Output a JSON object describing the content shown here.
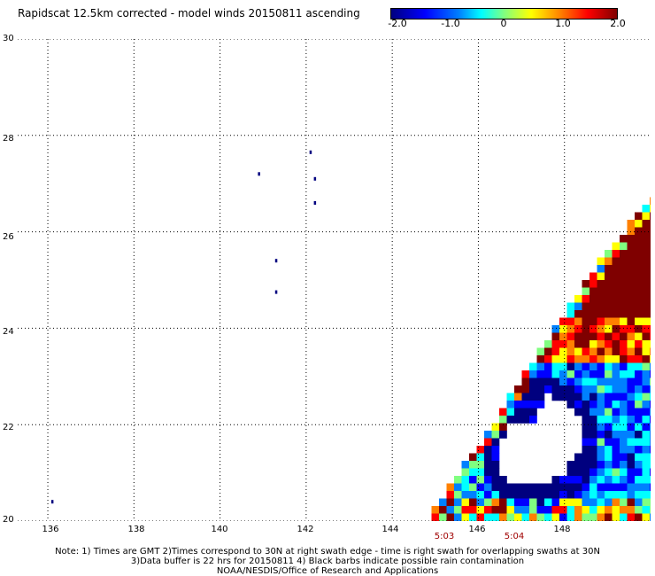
{
  "title": "Rapidscat 12.5km corrected - model winds 20150811 ascending",
  "colorbar": {
    "ticks": [
      "-2.0",
      "-1.0",
      "0",
      "1.0",
      "2.0"
    ],
    "range": [
      -2.0,
      2.0
    ],
    "colors": [
      "#00007f",
      "#0000ff",
      "#0080ff",
      "#00ffff",
      "#80ff80",
      "#ffff00",
      "#ff8000",
      "#ff0000",
      "#7f0000"
    ]
  },
  "map": {
    "lon_range": [
      135.3,
      150.0
    ],
    "lat_range": [
      20,
      30
    ],
    "lat_labels": [
      "30",
      "28",
      "26",
      "24",
      "22",
      "20"
    ],
    "lon_labels": [
      "136",
      "138",
      "140",
      "142",
      "144",
      "146",
      "148"
    ],
    "grid": "dotted",
    "land_color": "#00007f",
    "islands": [
      {
        "lon": 136.1,
        "lat": 20.4
      },
      {
        "lon": 140.9,
        "lat": 27.2
      },
      {
        "lon": 142.1,
        "lat": 27.65
      },
      {
        "lon": 142.2,
        "lat": 27.1
      },
      {
        "lon": 142.2,
        "lat": 26.6
      },
      {
        "lon": 141.3,
        "lat": 25.4
      },
      {
        "lon": 141.3,
        "lat": 24.75
      }
    ],
    "swath_edge": [
      [
        144.8,
        20.0
      ],
      [
        146.4,
        22.1
      ],
      [
        147.6,
        23.8
      ],
      [
        149.0,
        25.6
      ],
      [
        150.0,
        26.7
      ]
    ],
    "rain_hole": [
      [
        147.6,
        22.6
      ],
      [
        148.3,
        22.3
      ],
      [
        148.4,
        21.6
      ],
      [
        148.0,
        21.0
      ],
      [
        147.2,
        20.7
      ],
      [
        146.6,
        20.9
      ],
      [
        146.4,
        21.5
      ],
      [
        146.8,
        22.1
      ],
      [
        147.3,
        22.1
      ]
    ]
  },
  "times": [
    "5:03",
    "5:04"
  ],
  "notes": [
    "Note: 1) Times are GMT 2)Times correspond to 30N at right swath edge - time is right swath for overlapping swaths at 30N",
    "3)Data buffer is 22 hrs for 20150811 4) Black barbs indicate possible rain contamination",
    "NOAA/NESDIS/Office of Research and Applications"
  ]
}
